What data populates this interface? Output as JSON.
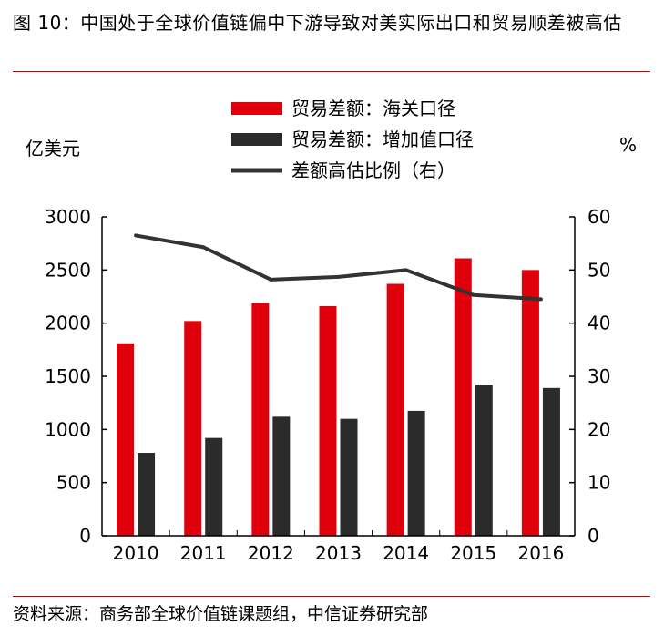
{
  "title": "图 10：中国处于全球价值链偏中下游导致对美实际出口和贸易顺差被高估",
  "source": "资料来源：商务部全球价值链课题组，中信证券研究部",
  "chart_data": {
    "type": "bar",
    "categories": [
      "2010",
      "2011",
      "2012",
      "2013",
      "2014",
      "2015",
      "2016"
    ],
    "series": [
      {
        "name": "贸易差额：海关口径",
        "type": "bar",
        "axis": "left",
        "color": "#e0000c",
        "values": [
          1810,
          2020,
          2190,
          2160,
          2370,
          2610,
          2500
        ]
      },
      {
        "name": "贸易差额：增加值口径",
        "type": "bar",
        "axis": "left",
        "color": "#2b2b2b",
        "values": [
          780,
          920,
          1120,
          1100,
          1175,
          1420,
          1390
        ]
      },
      {
        "name": "差额高估比例（右）",
        "type": "line",
        "axis": "right",
        "color": "#333333",
        "values": [
          56.5,
          54.3,
          48.2,
          48.7,
          50.0,
          45.3,
          44.5
        ]
      }
    ],
    "ylabel": "亿美元",
    "y2label": "%",
    "ylim": [
      0,
      3000
    ],
    "y2lim": [
      0,
      60
    ],
    "yticks": [
      "0",
      "500",
      "1000",
      "1500",
      "2000",
      "2500",
      "3000"
    ],
    "y2ticks": [
      "0",
      "10",
      "20",
      "30",
      "40",
      "50",
      "60"
    ],
    "grid": false,
    "legend_position": "top-center"
  }
}
